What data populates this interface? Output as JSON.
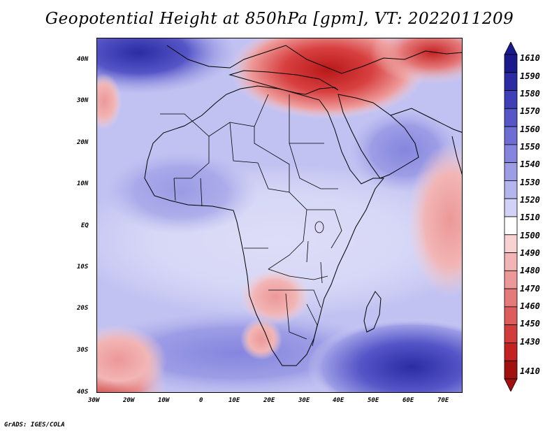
{
  "title": "Geopotential Height at 850hPa [gpm], VT: 2022011209",
  "lat_labels": [
    "40N",
    "30N",
    "20N",
    "10N",
    "EQ",
    "10S",
    "20S",
    "30S",
    "40S"
  ],
  "lon_labels": [
    "30W",
    "20W",
    "10W",
    "0",
    "10E",
    "20E",
    "30E",
    "40E",
    "50E",
    "60E",
    "70E"
  ],
  "colorbar": {
    "labels": [
      "1610",
      "1590",
      "1580",
      "1570",
      "1560",
      "1550",
      "1540",
      "1530",
      "1520",
      "1510",
      "1500",
      "1490",
      "1480",
      "1470",
      "1460",
      "1450",
      "1430",
      "1410"
    ],
    "colors": [
      "#1a1a8c",
      "#2b2ba3",
      "#3f3fb8",
      "#5656c8",
      "#6d6dd4",
      "#8585de",
      "#9d9de6",
      "#b5b5ee",
      "#d2d2f6",
      "#ffffff",
      "#f8d2d2",
      "#f2b5b5",
      "#ec9898",
      "#e57a7a",
      "#dd5c5c",
      "#d33c3c",
      "#c42222",
      "#a31010"
    ]
  },
  "credit": "GrADS: IGES/COLA"
}
